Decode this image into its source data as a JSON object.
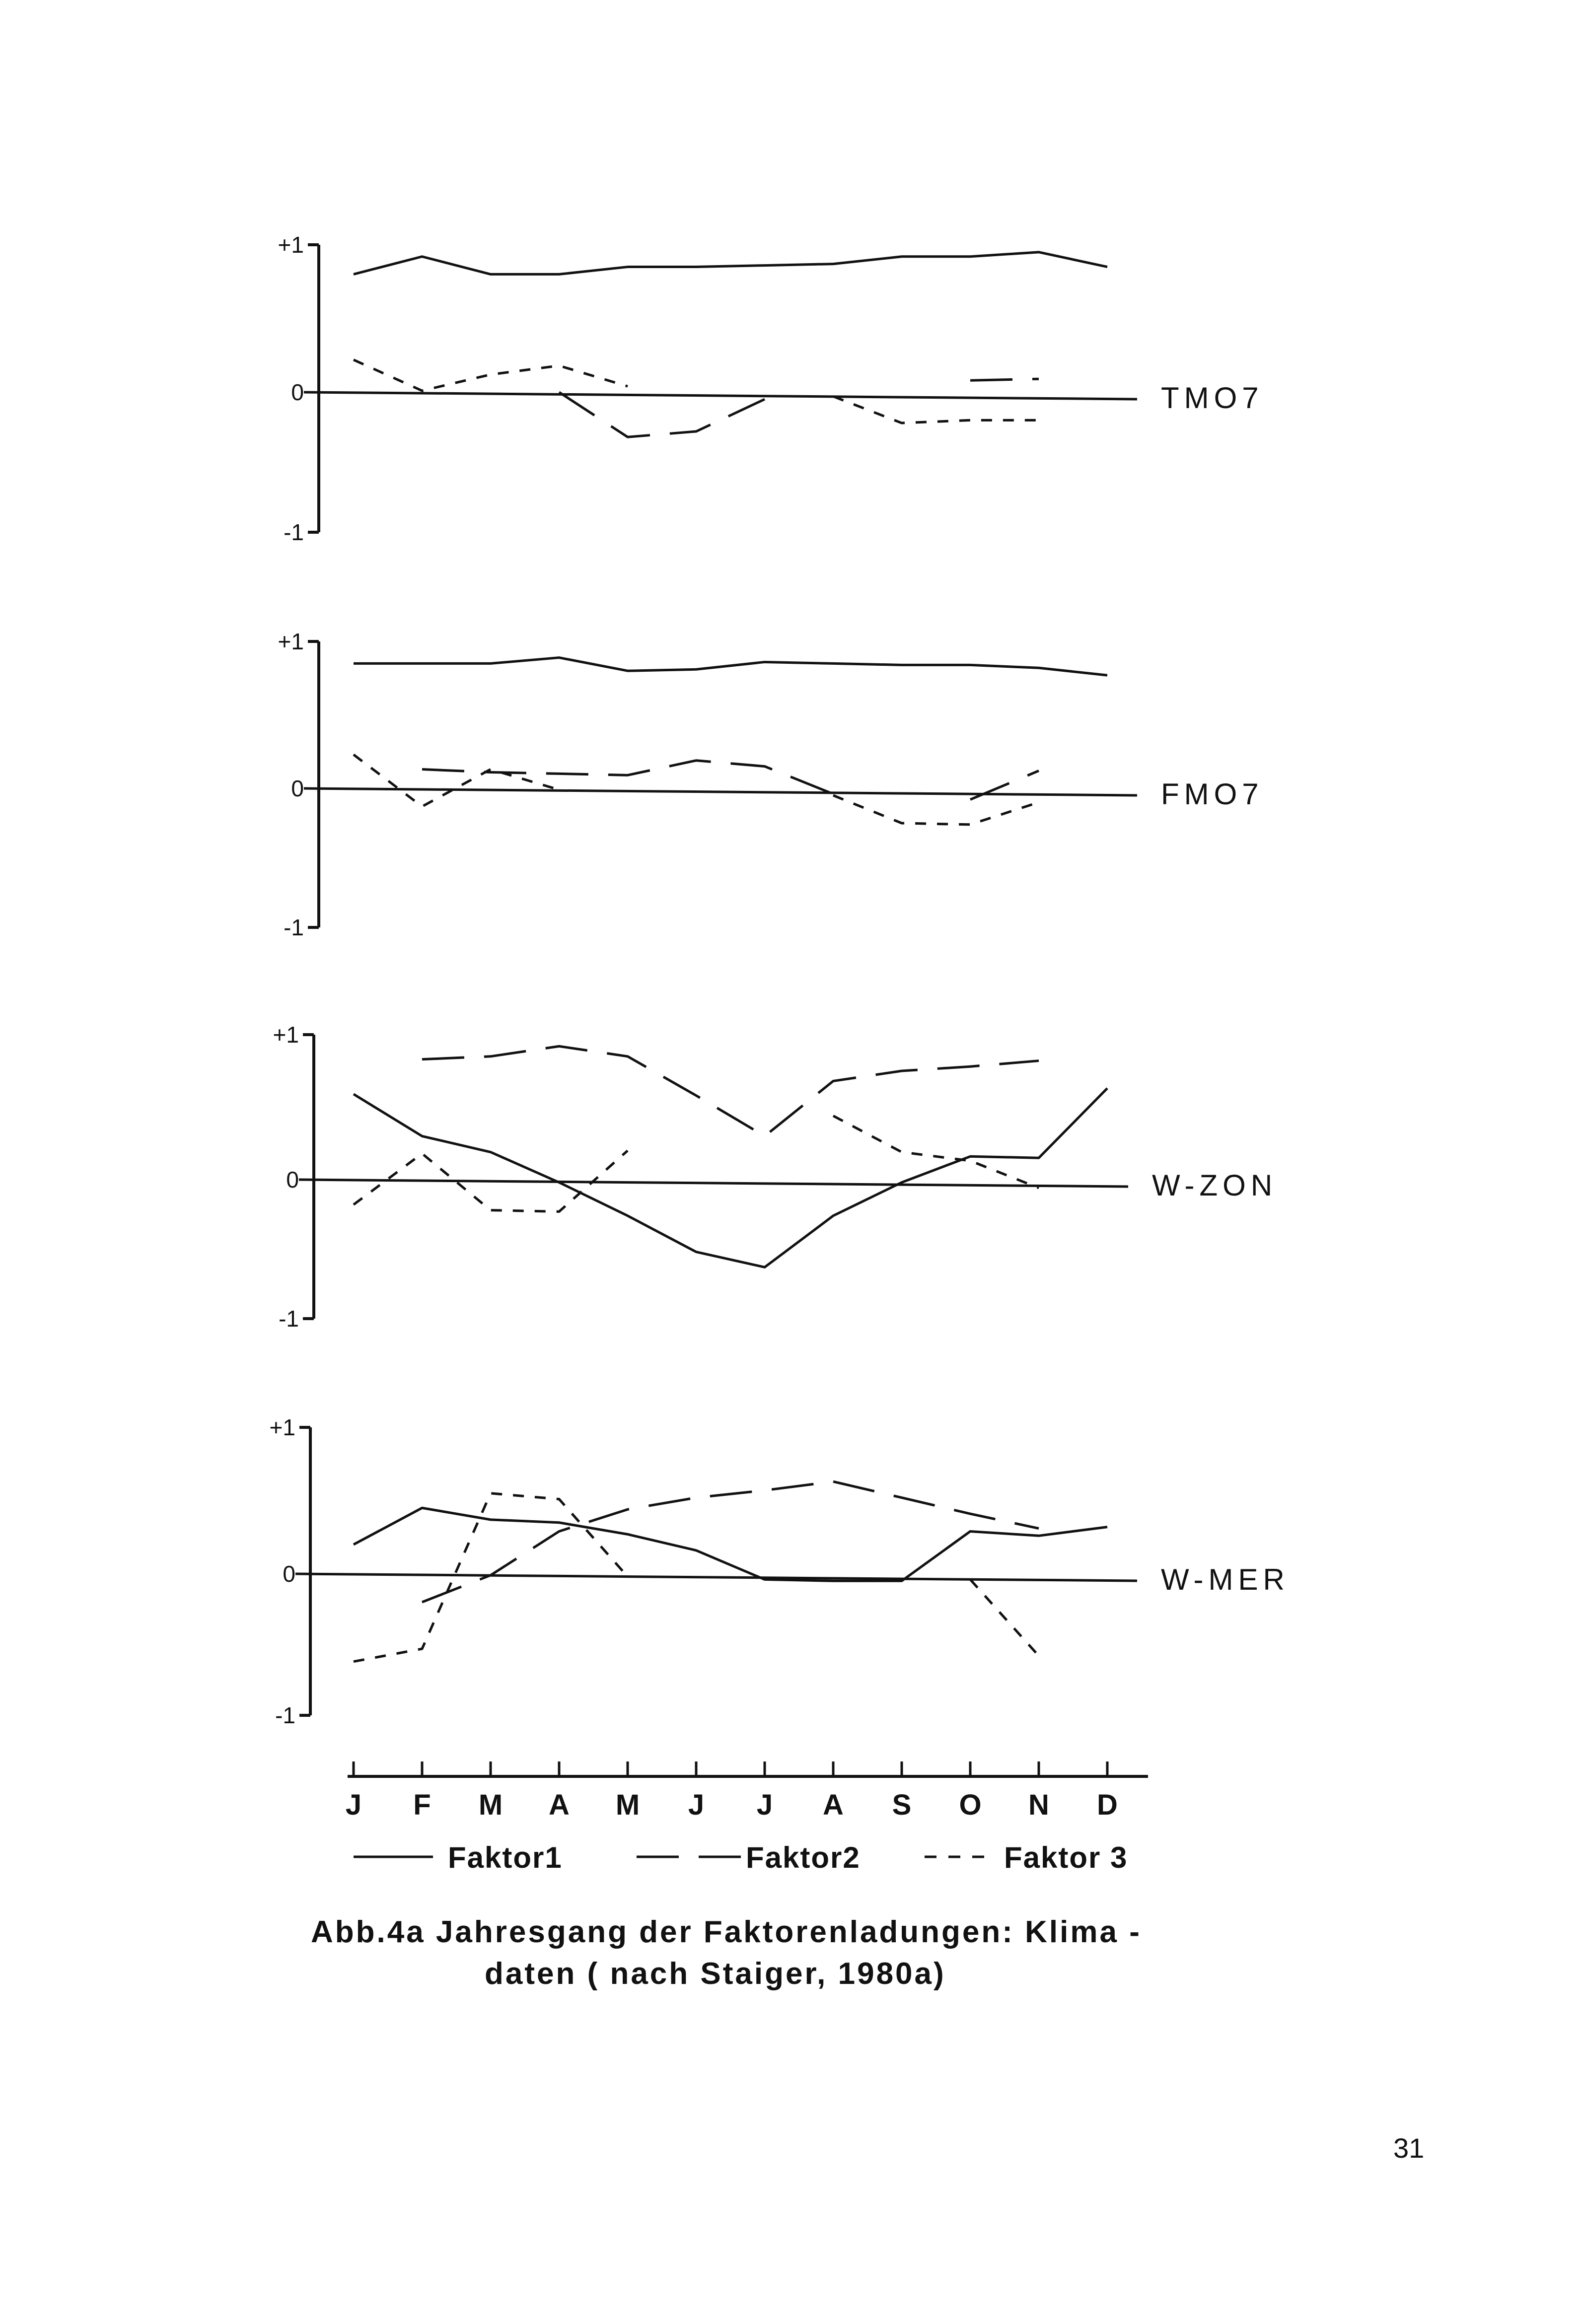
{
  "chart_data": [
    {
      "type": "line",
      "label": "TMO7",
      "categories": [
        "J",
        "F",
        "M",
        "A",
        "M",
        "J",
        "J",
        "A",
        "S",
        "O",
        "N",
        "D"
      ],
      "ylim": [
        -1,
        1
      ],
      "yticks": [
        "+1",
        "0",
        "-1"
      ],
      "series": [
        {
          "name": "Faktor1",
          "values": [
            0.8,
            0.92,
            0.8,
            0.8,
            0.85,
            0.85,
            0.86,
            0.87,
            0.92,
            0.92,
            0.95,
            0.85
          ]
        },
        {
          "name": "Faktor2",
          "values": [
            null,
            null,
            null,
            0.0,
            -0.32,
            -0.28,
            -0.05,
            null,
            null,
            0.08,
            0.09,
            null
          ]
        },
        {
          "name": "Faktor 3",
          "values": [
            0.22,
            0.01,
            0.12,
            0.18,
            0.04,
            null,
            null,
            -0.03,
            -0.22,
            -0.2,
            -0.2,
            null
          ]
        }
      ]
    },
    {
      "type": "line",
      "label": "FMO7",
      "categories": [
        "J",
        "F",
        "M",
        "A",
        "M",
        "J",
        "J",
        "A",
        "S",
        "O",
        "N",
        "D"
      ],
      "ylim": [
        -1,
        1
      ],
      "yticks": [
        "+1",
        "0",
        "-1"
      ],
      "series": [
        {
          "name": "Faktor1",
          "values": [
            0.85,
            0.85,
            0.85,
            0.89,
            0.8,
            0.81,
            0.86,
            0.85,
            0.84,
            0.84,
            0.82,
            0.77
          ]
        },
        {
          "name": "Faktor2",
          "values": [
            null,
            0.13,
            0.11,
            0.1,
            0.09,
            0.19,
            0.15,
            -0.04,
            null,
            -0.08,
            0.12,
            null
          ]
        },
        {
          "name": "Faktor 3",
          "values": [
            0.23,
            -0.13,
            0.13,
            -0.01,
            null,
            null,
            null,
            -0.05,
            -0.25,
            -0.26,
            -0.1,
            null
          ]
        }
      ]
    },
    {
      "type": "line",
      "label": "W-ZON",
      "categories": [
        "J",
        "F",
        "M",
        "A",
        "M",
        "J",
        "J",
        "A",
        "S",
        "O",
        "N",
        "D"
      ],
      "ylim": [
        -1,
        1
      ],
      "yticks": [
        "+1",
        "0",
        "-1"
      ],
      "series": [
        {
          "name": "Faktor1",
          "values": [
            0.59,
            0.3,
            0.19,
            -0.02,
            -0.26,
            -0.52,
            -0.63,
            -0.26,
            -0.02,
            0.16,
            0.15,
            0.63
          ]
        },
        {
          "name": "Faktor2",
          "values": [
            null,
            0.83,
            0.85,
            0.92,
            0.85,
            0.58,
            0.3,
            0.68,
            0.75,
            0.78,
            0.82,
            null
          ]
        },
        {
          "name": "Faktor 3",
          "values": [
            -0.18,
            0.18,
            -0.22,
            -0.23,
            0.2,
            null,
            null,
            0.44,
            0.19,
            0.13,
            -0.06,
            null
          ]
        }
      ]
    },
    {
      "type": "line",
      "label": "W-MER",
      "categories": [
        "J",
        "F",
        "M",
        "A",
        "M",
        "J",
        "J",
        "A",
        "S",
        "O",
        "N",
        "D"
      ],
      "ylim": [
        -1,
        1
      ],
      "yticks": [
        "+1",
        "0",
        "-1"
      ],
      "series": [
        {
          "name": "Faktor1",
          "values": [
            0.2,
            0.45,
            0.37,
            0.35,
            0.27,
            0.16,
            -0.04,
            -0.05,
            -0.05,
            0.29,
            0.26,
            0.32
          ]
        },
        {
          "name": "Faktor2",
          "values": [
            null,
            -0.2,
            -0.01,
            0.29,
            0.44,
            0.52,
            0.57,
            0.63,
            0.52,
            0.41,
            0.31,
            null
          ]
        },
        {
          "name": "Faktor 3",
          "values": [
            -0.62,
            -0.53,
            0.55,
            0.51,
            -0.02,
            null,
            null,
            null,
            null,
            -0.04,
            -0.58,
            null
          ]
        }
      ]
    }
  ],
  "axis": {
    "months": [
      "J",
      "F",
      "M",
      "A",
      "M",
      "J",
      "J",
      "A",
      "S",
      "O",
      "N",
      "D"
    ]
  },
  "legend": {
    "items": [
      {
        "name": "Faktor1",
        "style": "solid"
      },
      {
        "name": "Faktor2",
        "style": "dashed"
      },
      {
        "name": "Faktor 3",
        "style": "dotted"
      }
    ]
  },
  "caption": {
    "line1": "Abb.4a Jahresgang der Faktorenladungen: Klima -",
    "line2": "daten ( nach Staiger, 1980a)"
  },
  "page_number": "31",
  "colors": {
    "ink": "#111111",
    "paper": "#ffffff"
  }
}
